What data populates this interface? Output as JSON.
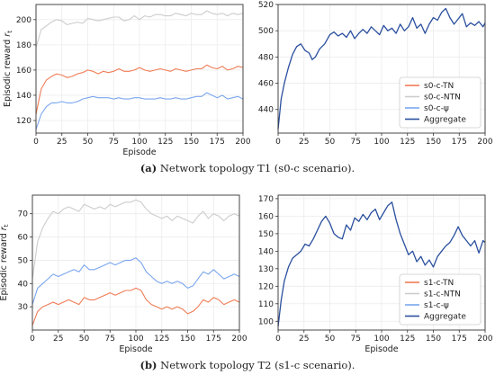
{
  "captions": [
    {
      "tag": "(a)",
      "text": "Network topology T1 (s0-c scenario)."
    },
    {
      "tag": "(b)",
      "text": "Network topology T2 (s1-c scenario)."
    }
  ],
  "chart_data": [
    {
      "id": "top-left",
      "type": "line",
      "xlabel": "Episode",
      "ylabel": "Episodic reward r_t",
      "xlim": [
        0,
        200
      ],
      "ylim": [
        110,
        212
      ],
      "xticks": [
        0,
        25,
        50,
        75,
        100,
        125,
        150,
        175,
        200
      ],
      "yticks": [
        120,
        140,
        160,
        180,
        200
      ],
      "grid": true,
      "legend": null,
      "series": [
        {
          "name": "s0-c-NTN",
          "color": "#cccccc",
          "x": [
            0,
            5,
            10,
            15,
            20,
            25,
            30,
            35,
            40,
            45,
            50,
            55,
            60,
            65,
            70,
            75,
            80,
            85,
            90,
            95,
            100,
            105,
            110,
            115,
            120,
            125,
            130,
            135,
            140,
            145,
            150,
            155,
            160,
            165,
            170,
            175,
            180,
            185,
            190,
            195,
            200
          ],
          "y": [
            178,
            192,
            195,
            198,
            200,
            199,
            196,
            197,
            198,
            197,
            201,
            200,
            199,
            200,
            201,
            202,
            202,
            199,
            200,
            203,
            200,
            203,
            202,
            204,
            204,
            203,
            203,
            205,
            204,
            203,
            205,
            204,
            204,
            207,
            205,
            204,
            205,
            203,
            205,
            204,
            205
          ]
        },
        {
          "name": "s0-c-TN",
          "color": "#f07c56",
          "x": [
            0,
            5,
            10,
            15,
            20,
            25,
            30,
            35,
            40,
            45,
            50,
            55,
            60,
            65,
            70,
            75,
            80,
            85,
            90,
            95,
            100,
            105,
            110,
            115,
            120,
            125,
            130,
            135,
            140,
            145,
            150,
            155,
            160,
            165,
            170,
            175,
            180,
            185,
            190,
            195,
            200
          ],
          "y": [
            125,
            145,
            152,
            155,
            157,
            156,
            154,
            155,
            157,
            158,
            160,
            159,
            157,
            159,
            158,
            159,
            161,
            159,
            159,
            160,
            162,
            160,
            159,
            160,
            161,
            160,
            159,
            161,
            160,
            159,
            160,
            161,
            161,
            164,
            162,
            161,
            163,
            160,
            161,
            163,
            162
          ]
        },
        {
          "name": "s0-c-ψ",
          "color": "#7aa6ee",
          "x": [
            0,
            5,
            10,
            15,
            20,
            25,
            30,
            35,
            40,
            45,
            50,
            55,
            60,
            65,
            70,
            75,
            80,
            85,
            90,
            95,
            100,
            105,
            110,
            115,
            120,
            125,
            130,
            135,
            140,
            145,
            150,
            155,
            160,
            165,
            170,
            175,
            180,
            185,
            190,
            195,
            200
          ],
          "y": [
            113,
            125,
            131,
            134,
            134,
            135,
            134,
            134,
            135,
            137,
            138,
            139,
            138,
            138,
            138,
            137,
            138,
            137,
            137,
            138,
            138,
            137,
            137,
            137,
            138,
            137,
            137,
            138,
            137,
            137,
            138,
            139,
            139,
            142,
            140,
            138,
            140,
            137,
            138,
            139,
            137
          ]
        }
      ]
    },
    {
      "id": "top-right",
      "type": "line",
      "xlabel": "",
      "ylabel": "",
      "xlim": [
        0,
        200
      ],
      "ylim": [
        422,
        520
      ],
      "xticks": [
        0,
        25,
        50,
        75,
        100,
        125,
        150,
        175,
        200
      ],
      "yticks": [
        440,
        460,
        480,
        500,
        520
      ],
      "grid": true,
      "legend": "bottom-right",
      "legend_entries": [
        {
          "label": "s0-c-TN",
          "color": "#f07c56"
        },
        {
          "label": "s0-c-NTN",
          "color": "#cccccc"
        },
        {
          "label": "s0-c-ψ",
          "color": "#7aa6ee"
        },
        {
          "label": "Aggregate",
          "color": "#2a4f9e"
        }
      ],
      "series": [
        {
          "name": "Aggregate",
          "color": "#2a4f9e",
          "x": [
            0,
            3,
            6,
            10,
            14,
            18,
            22,
            26,
            30,
            33,
            36,
            40,
            45,
            50,
            54,
            58,
            62,
            66,
            70,
            74,
            78,
            82,
            86,
            90,
            94,
            98,
            102,
            106,
            110,
            114,
            118,
            122,
            126,
            130,
            134,
            138,
            142,
            146,
            150,
            154,
            158,
            162,
            166,
            170,
            174,
            178,
            182,
            186,
            190,
            194,
            198,
            200
          ],
          "y": [
            425,
            448,
            460,
            472,
            482,
            488,
            490,
            485,
            483,
            478,
            480,
            486,
            490,
            497,
            499,
            496,
            498,
            495,
            500,
            494,
            498,
            501,
            498,
            503,
            500,
            497,
            504,
            500,
            502,
            498,
            505,
            500,
            503,
            510,
            502,
            505,
            498,
            505,
            510,
            508,
            514,
            517,
            510,
            505,
            509,
            513,
            503,
            506,
            504,
            507,
            503,
            506
          ]
        }
      ]
    },
    {
      "id": "bottom-left",
      "type": "line",
      "xlabel": "Episode",
      "ylabel": "Episodic reward r_t",
      "xlim": [
        0,
        200
      ],
      "ylim": [
        20,
        78
      ],
      "xticks": [
        0,
        25,
        50,
        75,
        100,
        125,
        150,
        175,
        200
      ],
      "yticks": [
        30,
        40,
        50,
        60,
        70
      ],
      "grid": true,
      "legend": null,
      "series": [
        {
          "name": "s1-c-NTN",
          "color": "#cccccc",
          "x": [
            0,
            5,
            10,
            15,
            20,
            25,
            30,
            35,
            40,
            45,
            50,
            55,
            60,
            65,
            70,
            75,
            80,
            85,
            90,
            95,
            100,
            105,
            110,
            115,
            120,
            125,
            130,
            135,
            140,
            145,
            150,
            155,
            160,
            165,
            170,
            175,
            180,
            185,
            190,
            195,
            200
          ],
          "y": [
            42,
            58,
            64,
            68,
            71,
            70,
            72,
            73,
            72,
            71,
            74,
            73,
            72,
            73,
            72,
            74,
            73,
            74,
            75,
            75,
            76,
            75,
            72,
            70,
            69,
            68,
            69,
            67,
            69,
            68,
            67,
            66,
            69,
            71,
            68,
            70,
            69,
            67,
            69,
            70,
            69
          ]
        },
        {
          "name": "s1-c-ψ",
          "color": "#7aa6ee",
          "x": [
            0,
            5,
            10,
            15,
            20,
            25,
            30,
            35,
            40,
            45,
            50,
            55,
            60,
            65,
            70,
            75,
            80,
            85,
            90,
            95,
            100,
            105,
            110,
            115,
            120,
            125,
            130,
            135,
            140,
            145,
            150,
            155,
            160,
            165,
            170,
            175,
            180,
            185,
            190,
            195,
            200
          ],
          "y": [
            31,
            38,
            40,
            42,
            44,
            43,
            44,
            45,
            46,
            45,
            48,
            46,
            46,
            47,
            48,
            49,
            48,
            49,
            50,
            50,
            51,
            49,
            45,
            43,
            41,
            40,
            41,
            40,
            41,
            40,
            38,
            39,
            42,
            45,
            44,
            46,
            44,
            42,
            43,
            44,
            43
          ]
        },
        {
          "name": "s1-c-TN",
          "color": "#f07c56",
          "x": [
            0,
            5,
            10,
            15,
            20,
            25,
            30,
            35,
            40,
            45,
            50,
            55,
            60,
            65,
            70,
            75,
            80,
            85,
            90,
            95,
            100,
            105,
            110,
            115,
            120,
            125,
            130,
            135,
            140,
            145,
            150,
            155,
            160,
            165,
            170,
            175,
            180,
            185,
            190,
            195,
            200
          ],
          "y": [
            22,
            28,
            30,
            31,
            32,
            31,
            32,
            33,
            32,
            31,
            34,
            33,
            33,
            34,
            35,
            36,
            35,
            36,
            37,
            37,
            38,
            37,
            33,
            31,
            30,
            29,
            30,
            29,
            30,
            29,
            27,
            28,
            30,
            33,
            32,
            34,
            33,
            31,
            32,
            33,
            32
          ]
        }
      ]
    },
    {
      "id": "bottom-right",
      "type": "line",
      "xlabel": "Episode",
      "ylabel": "",
      "xlim": [
        0,
        200
      ],
      "ylim": [
        95,
        172
      ],
      "xticks": [
        0,
        25,
        50,
        75,
        100,
        125,
        150,
        175,
        200
      ],
      "yticks": [
        100,
        110,
        120,
        130,
        140,
        150,
        160,
        170
      ],
      "grid": true,
      "legend": "bottom-right",
      "legend_entries": [
        {
          "label": "s1-c-TN",
          "color": "#f07c56"
        },
        {
          "label": "s1-c-NTN",
          "color": "#cccccc"
        },
        {
          "label": "s1-c-ψ",
          "color": "#7aa6ee"
        },
        {
          "label": "Aggregate",
          "color": "#2a4f9e"
        }
      ],
      "series": [
        {
          "name": "Aggregate",
          "color": "#2a4f9e",
          "x": [
            0,
            3,
            6,
            10,
            14,
            18,
            22,
            26,
            30,
            34,
            38,
            42,
            46,
            50,
            54,
            58,
            62,
            66,
            70,
            74,
            78,
            82,
            86,
            90,
            94,
            98,
            102,
            106,
            110,
            114,
            118,
            122,
            126,
            130,
            134,
            138,
            142,
            146,
            150,
            154,
            158,
            162,
            166,
            170,
            174,
            178,
            182,
            186,
            190,
            194,
            198,
            200
          ],
          "y": [
            97,
            112,
            123,
            131,
            136,
            138,
            140,
            144,
            143,
            147,
            152,
            157,
            160,
            156,
            150,
            148,
            147,
            155,
            152,
            159,
            157,
            161,
            158,
            162,
            164,
            158,
            162,
            166,
            168,
            158,
            150,
            144,
            138,
            140,
            134,
            137,
            132,
            135,
            131,
            137,
            140,
            143,
            145,
            149,
            154,
            149,
            146,
            143,
            146,
            139,
            146,
            145
          ]
        }
      ]
    }
  ]
}
